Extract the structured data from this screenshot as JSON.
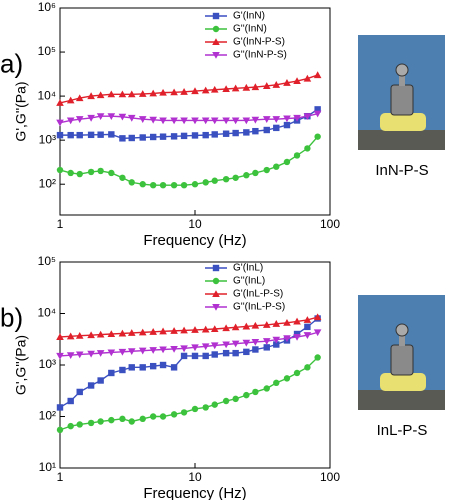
{
  "chart_data": [
    {
      "type": "line",
      "panel_label": "a)",
      "image_caption": "InN-P-S",
      "xlabel": "Frequency (Hz)",
      "ylabel": "G',G''(Pa)",
      "log_x": true,
      "log_y": true,
      "x": [
        1,
        1.2,
        1.4,
        1.7,
        2,
        2.4,
        2.9,
        3.4,
        4.1,
        4.9,
        5.8,
        7,
        8.3,
        10,
        12,
        14,
        17,
        20,
        24,
        28,
        34,
        40,
        48,
        57,
        68,
        81
      ],
      "xlim": [
        1,
        100
      ],
      "xticks": [
        1,
        10,
        100
      ],
      "ylim": [
        20,
        1000000
      ],
      "yticks": [
        {
          "value": 100,
          "label": "10²"
        },
        {
          "value": 1000,
          "label": "10³"
        },
        {
          "value": 10000,
          "label": "10⁴"
        },
        {
          "value": 100000,
          "label": "10⁵"
        },
        {
          "value": 1000000,
          "label": "10⁶"
        }
      ],
      "series": [
        {
          "name": "G'(InN)",
          "color": "#3a4fc0",
          "marker": "square",
          "values": [
            1300,
            1300,
            1300,
            1320,
            1330,
            1350,
            1100,
            1120,
            1150,
            1180,
            1200,
            1220,
            1250,
            1280,
            1300,
            1350,
            1400,
            1450,
            1500,
            1600,
            1700,
            1900,
            2200,
            2800,
            3500,
            5000
          ]
        },
        {
          "name": "G''(InN)",
          "color": "#3cc23c",
          "marker": "circle",
          "values": [
            210,
            180,
            170,
            190,
            200,
            180,
            140,
            110,
            100,
            95,
            95,
            95,
            95,
            100,
            110,
            120,
            130,
            140,
            160,
            180,
            210,
            250,
            320,
            450,
            650,
            1200
          ]
        },
        {
          "name": "G'(InN-P-S)",
          "color": "#e0202a",
          "marker": "triangle",
          "values": [
            7000,
            8000,
            9000,
            10000,
            10500,
            11000,
            11000,
            11000,
            11200,
            11500,
            12000,
            12200,
            12500,
            13000,
            13500,
            14000,
            14500,
            15000,
            15500,
            16000,
            17000,
            18000,
            20000,
            22000,
            25000,
            30000
          ]
        },
        {
          "name": "G''(InN-P-S)",
          "color": "#b030d0",
          "marker": "triangle-down",
          "values": [
            2500,
            2800,
            3000,
            3200,
            3500,
            3500,
            3400,
            3200,
            3000,
            2900,
            2800,
            2800,
            2800,
            2800,
            2800,
            2800,
            2800,
            2800,
            2800,
            2900,
            3000,
            3000,
            3100,
            3200,
            3500,
            4000
          ]
        }
      ]
    },
    {
      "type": "line",
      "panel_label": "b)",
      "image_caption": "InL-P-S",
      "xlabel": "Frequency (Hz)",
      "ylabel": "G',G''(Pa)",
      "log_x": true,
      "log_y": true,
      "x": [
        1,
        1.2,
        1.4,
        1.7,
        2,
        2.4,
        2.9,
        3.4,
        4.1,
        4.9,
        5.8,
        7,
        8.3,
        10,
        12,
        14,
        17,
        20,
        24,
        28,
        34,
        40,
        48,
        57,
        68,
        81
      ],
      "xlim": [
        1,
        100
      ],
      "xticks": [
        1,
        10,
        100
      ],
      "ylim": [
        10,
        100000
      ],
      "yticks": [
        {
          "value": 10,
          "label": "10¹"
        },
        {
          "value": 100,
          "label": "10²"
        },
        {
          "value": 1000,
          "label": "10³"
        },
        {
          "value": 10000,
          "label": "10⁴"
        },
        {
          "value": 100000,
          "label": "10⁵"
        }
      ],
      "series": [
        {
          "name": "G'(InL)",
          "color": "#3a4fc0",
          "marker": "square",
          "values": [
            150,
            200,
            300,
            400,
            500,
            700,
            800,
            900,
            900,
            950,
            1000,
            900,
            1500,
            1500,
            1500,
            1600,
            1700,
            1700,
            1800,
            2000,
            2200,
            2500,
            3000,
            4000,
            5500,
            8000
          ]
        },
        {
          "name": "G''(InL)",
          "color": "#3cc23c",
          "marker": "circle",
          "values": [
            55,
            65,
            70,
            75,
            80,
            85,
            90,
            80,
            90,
            100,
            100,
            110,
            120,
            140,
            150,
            170,
            200,
            220,
            260,
            300,
            350,
            450,
            550,
            700,
            900,
            1400
          ]
        },
        {
          "name": "G'(InL-P-S)",
          "color": "#e0202a",
          "marker": "triangle",
          "values": [
            3500,
            3600,
            3700,
            3800,
            3900,
            4000,
            4100,
            4200,
            4300,
            4400,
            4500,
            4600,
            4700,
            4800,
            4900,
            5000,
            5200,
            5400,
            5600,
            5800,
            6000,
            6300,
            6600,
            7000,
            7500,
            8500
          ]
        },
        {
          "name": "G''(InL-P-S)",
          "color": "#b030d0",
          "marker": "triangle-down",
          "values": [
            1500,
            1550,
            1600,
            1650,
            1700,
            1750,
            1800,
            1850,
            1900,
            1950,
            2000,
            2050,
            2100,
            2200,
            2300,
            2400,
            2500,
            2600,
            2700,
            2800,
            2900,
            3100,
            3300,
            3500,
            3800,
            4300
          ]
        }
      ]
    }
  ]
}
